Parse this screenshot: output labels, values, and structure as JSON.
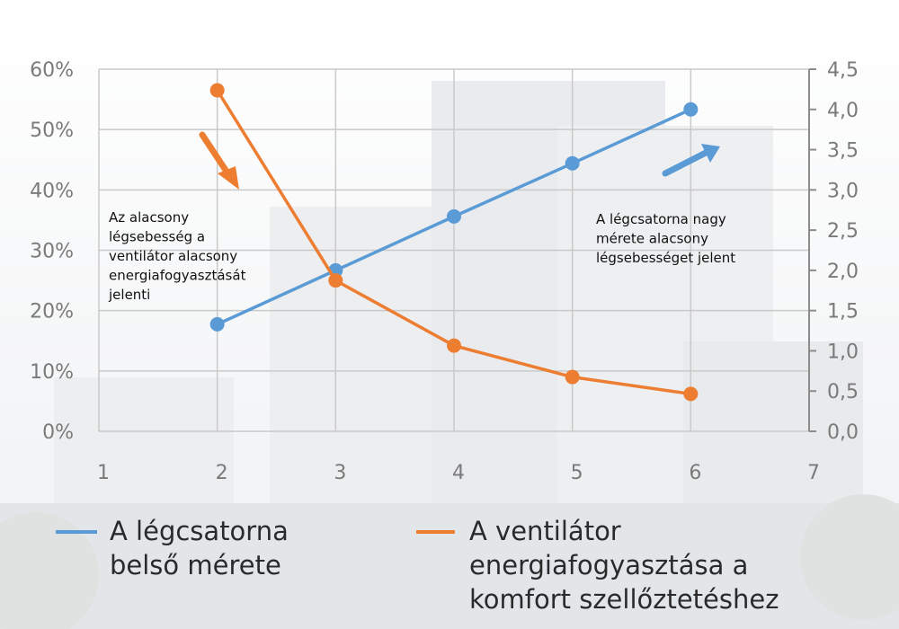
{
  "chart_data": {
    "type": "line",
    "x": [
      2,
      3,
      4,
      5,
      6
    ],
    "xlim": [
      1,
      7
    ],
    "x_ticks": [
      "1",
      "2",
      "3",
      "4",
      "5",
      "6",
      "7"
    ],
    "y_left_lim": [
      0,
      0.6
    ],
    "y_left_ticks": [
      "0%",
      "10%",
      "20%",
      "30%",
      "40%",
      "50%",
      "60%"
    ],
    "y_right_lim": [
      0,
      4.5
    ],
    "y_right_ticks": [
      "0,0",
      "0,5",
      "1,0",
      "1,5",
      "2,0",
      "2,5",
      "3,0",
      "3,5",
      "4,0",
      "4,5"
    ],
    "grid": true,
    "legend_position": "bottom",
    "series": [
      {
        "name": "A légcsatorna belső mérete",
        "axis": "right",
        "color": "#5b9bd5",
        "values": [
          1.33,
          2.0,
          2.67,
          3.33,
          4.0
        ],
        "legend_lines": [
          "A légcsatorna",
          "belső mérete"
        ]
      },
      {
        "name": "A ventilátor energiafogyasztása a komfort szellőztetéshez",
        "axis": "left",
        "color": "#ed7d31",
        "values": [
          0.565,
          0.25,
          0.142,
          0.09,
          0.062
        ],
        "legend_lines": [
          "A ventilátor",
          "energiafogyasztása a",
          "komfort szellőztetéshez"
        ]
      }
    ],
    "annotations": [
      {
        "id": "left",
        "lines": [
          "Az alacsony",
          "légsebesség a",
          "ventilátor alacsony",
          "energiafogyasztását",
          "jelenti"
        ],
        "arrow": "down",
        "arrow_color": "#ed7d31"
      },
      {
        "id": "right",
        "lines": [
          "A légcsatorna nagy",
          "mérete alacsony",
          "légsebességet jelent"
        ],
        "arrow": "up",
        "arrow_color": "#5b9bd5"
      }
    ]
  }
}
